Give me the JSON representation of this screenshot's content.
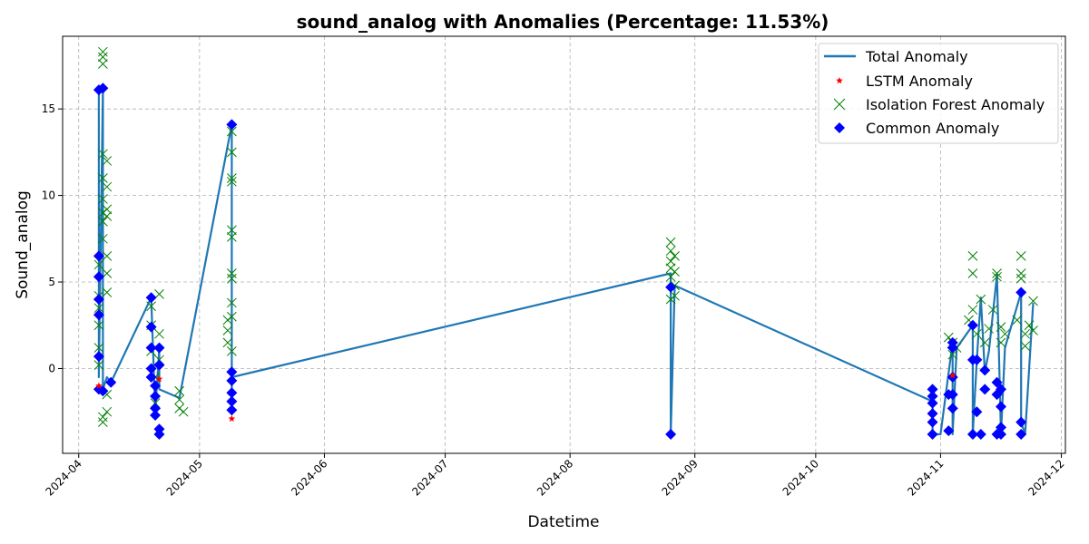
{
  "chart_data": {
    "type": "line",
    "title": "sound_analog with Anomalies (Percentage: 11.53%)",
    "xlabel": "Datetime",
    "ylabel": "Sound_analog",
    "x_range": [
      "2024-03-28",
      "2024-12-02"
    ],
    "ylim": [
      -4.9,
      19.2
    ],
    "x_ticks": [
      "2024-04",
      "2024-05",
      "2024-06",
      "2024-07",
      "2024-08",
      "2024-09",
      "2024-10",
      "2024-11",
      "2024-12"
    ],
    "x_tick_dates": [
      "2024-04-01",
      "2024-05-01",
      "2024-06-01",
      "2024-07-01",
      "2024-08-01",
      "2024-09-01",
      "2024-10-01",
      "2024-11-01",
      "2024-12-01"
    ],
    "y_ticks": [
      0,
      5,
      10,
      15
    ],
    "grid": true,
    "legend_position": "top-right",
    "colors": {
      "line": "#1f77b4",
      "lstm": "#ff0000",
      "isolation": "#008000",
      "common": "#0000ff"
    },
    "series": [
      {
        "name": "Total Anomaly",
        "marker": "line",
        "x": [
          "2024-04-06",
          "2024-04-06",
          "2024-04-07",
          "2024-04-07",
          "2024-04-08",
          "2024-04-09",
          "2024-04-19",
          "2024-04-20",
          "2024-04-21",
          "2024-04-21",
          "2024-04-26",
          "2024-05-09",
          "2024-05-09",
          "2024-05-09",
          "2024-08-26",
          "2024-08-26",
          "2024-08-27",
          "2024-10-30",
          "2024-10-30",
          "2024-11-01",
          "2024-11-04",
          "2024-11-04",
          "2024-11-05",
          "2024-11-09",
          "2024-11-09",
          "2024-11-10",
          "2024-11-11",
          "2024-11-12",
          "2024-11-13",
          "2024-11-15",
          "2024-11-16",
          "2024-11-17",
          "2024-11-21",
          "2024-11-21",
          "2024-11-22",
          "2024-11-24"
        ],
        "y": [
          16.1,
          -0.5,
          16.2,
          -1.2,
          -0.5,
          -0.8,
          4.1,
          -2.5,
          1.2,
          -1.2,
          -1.7,
          14.1,
          -2.3,
          -0.5,
          5.5,
          -3.8,
          4.8,
          -1.9,
          -3.8,
          -3.8,
          1.5,
          -3.8,
          1.2,
          2.5,
          -3.8,
          0.5,
          4.1,
          -0.2,
          1.0,
          5.4,
          -3.8,
          1.2,
          4.4,
          -3.1,
          -3.8,
          3.8
        ]
      },
      {
        "name": "LSTM Anomaly",
        "marker": "star",
        "x": [
          "2024-05-09",
          "2024-04-06",
          "2024-04-21",
          "2024-11-04"
        ],
        "y": [
          -2.9,
          -1.0,
          -0.6,
          -0.4
        ]
      },
      {
        "name": "Isolation Forest Anomaly",
        "marker": "x",
        "x": [
          "2024-04-07",
          "2024-04-07",
          "2024-04-07",
          "2024-04-07",
          "2024-04-07",
          "2024-04-07",
          "2024-04-07",
          "2024-04-07",
          "2024-04-07",
          "2024-04-08",
          "2024-04-08",
          "2024-04-08",
          "2024-04-08",
          "2024-04-08",
          "2024-04-08",
          "2024-04-08",
          "2024-04-06",
          "2024-04-06",
          "2024-04-06",
          "2024-04-06",
          "2024-04-06",
          "2024-04-06",
          "2024-04-08",
          "2024-04-08",
          "2024-04-07",
          "2024-04-07",
          "2024-04-19",
          "2024-04-19",
          "2024-04-19",
          "2024-04-20",
          "2024-04-20",
          "2024-04-21",
          "2024-04-21",
          "2024-04-21",
          "2024-04-26",
          "2024-04-26",
          "2024-04-26",
          "2024-04-27",
          "2024-05-08",
          "2024-05-08",
          "2024-05-09",
          "2024-05-09",
          "2024-05-09",
          "2024-05-09",
          "2024-05-09",
          "2024-05-09",
          "2024-05-09",
          "2024-05-09",
          "2024-05-09",
          "2024-05-09",
          "2024-05-08",
          "2024-05-09",
          "2024-08-26",
          "2024-08-26",
          "2024-08-26",
          "2024-08-26",
          "2024-08-26",
          "2024-08-26",
          "2024-08-27",
          "2024-08-27",
          "2024-08-27",
          "2024-08-27",
          "2024-11-03",
          "2024-11-04",
          "2024-11-04",
          "2024-11-05",
          "2024-11-08",
          "2024-11-09",
          "2024-11-09",
          "2024-11-09",
          "2024-11-10",
          "2024-11-11",
          "2024-11-12",
          "2024-11-13",
          "2024-11-14",
          "2024-11-15",
          "2024-11-15",
          "2024-11-16",
          "2024-11-16",
          "2024-11-17",
          "2024-11-20",
          "2024-11-21",
          "2024-11-21",
          "2024-11-21",
          "2024-11-22",
          "2024-11-22",
          "2024-11-23",
          "2024-11-24",
          "2024-11-24"
        ],
        "y": [
          18.3,
          18.0,
          17.6,
          12.4,
          11.0,
          9.8,
          9.0,
          8.5,
          7.5,
          12.0,
          10.5,
          9.2,
          8.8,
          6.5,
          5.5,
          4.4,
          6.0,
          4.2,
          3.5,
          2.5,
          1.2,
          0.2,
          -1.5,
          -2.5,
          -2.8,
          -3.1,
          3.6,
          2.5,
          1.0,
          -0.5,
          -2.0,
          4.3,
          2.0,
          0.5,
          -1.3,
          -1.8,
          -2.3,
          -2.5,
          2.8,
          1.5,
          13.7,
          12.5,
          11.0,
          10.8,
          8.0,
          7.6,
          5.5,
          5.2,
          3.8,
          3.0,
          2.2,
          1.0,
          7.3,
          6.8,
          6.2,
          5.8,
          5.3,
          4.0,
          6.5,
          5.6,
          4.8,
          4.2,
          1.8,
          1.5,
          0.8,
          1.2,
          2.8,
          6.5,
          5.5,
          3.4,
          2.0,
          4.0,
          1.5,
          2.3,
          3.4,
          5.5,
          5.3,
          2.4,
          1.5,
          2.0,
          2.8,
          6.5,
          5.5,
          5.2,
          2.0,
          1.3,
          2.5,
          3.9,
          2.2
        ]
      },
      {
        "name": "Common Anomaly",
        "marker": "diamond",
        "x": [
          "2024-04-06",
          "2024-04-06",
          "2024-04-06",
          "2024-04-06",
          "2024-04-06",
          "2024-04-06",
          "2024-04-06",
          "2024-04-07",
          "2024-04-07",
          "2024-04-09",
          "2024-04-19",
          "2024-04-19",
          "2024-04-19",
          "2024-04-19",
          "2024-04-19",
          "2024-04-20",
          "2024-04-20",
          "2024-04-20",
          "2024-04-20",
          "2024-04-21",
          "2024-04-21",
          "2024-04-21",
          "2024-04-21",
          "2024-05-09",
          "2024-05-09",
          "2024-05-09",
          "2024-05-09",
          "2024-05-09",
          "2024-05-09",
          "2024-08-26",
          "2024-08-26",
          "2024-10-30",
          "2024-10-30",
          "2024-10-30",
          "2024-10-30",
          "2024-10-30",
          "2024-10-30",
          "2024-11-03",
          "2024-11-03",
          "2024-11-04",
          "2024-11-04",
          "2024-11-04",
          "2024-11-04",
          "2024-11-04",
          "2024-11-09",
          "2024-11-09",
          "2024-11-09",
          "2024-11-10",
          "2024-11-10",
          "2024-11-11",
          "2024-11-12",
          "2024-11-12",
          "2024-11-15",
          "2024-11-15",
          "2024-11-15",
          "2024-11-16",
          "2024-11-16",
          "2024-11-16",
          "2024-11-16",
          "2024-11-21",
          "2024-11-21",
          "2024-11-21"
        ],
        "y": [
          16.1,
          6.5,
          5.3,
          4.0,
          3.1,
          0.7,
          -1.2,
          16.2,
          -1.3,
          -0.8,
          4.1,
          2.4,
          1.2,
          0.0,
          -0.5,
          -1.0,
          -1.6,
          -2.3,
          -2.7,
          -3.5,
          -3.8,
          1.2,
          0.2,
          14.1,
          -0.2,
          -0.7,
          -1.4,
          -1.9,
          -2.4,
          4.7,
          -3.8,
          -1.2,
          -1.6,
          -2.0,
          -2.6,
          -3.1,
          -3.8,
          -1.5,
          -3.6,
          1.5,
          1.2,
          -0.5,
          -1.5,
          -2.3,
          2.5,
          0.5,
          -3.8,
          0.5,
          -2.5,
          -3.8,
          -1.2,
          -0.1,
          -0.8,
          -1.5,
          -3.8,
          -1.2,
          -2.2,
          -3.4,
          -3.8,
          4.4,
          -3.1,
          -3.8
        ]
      }
    ]
  }
}
